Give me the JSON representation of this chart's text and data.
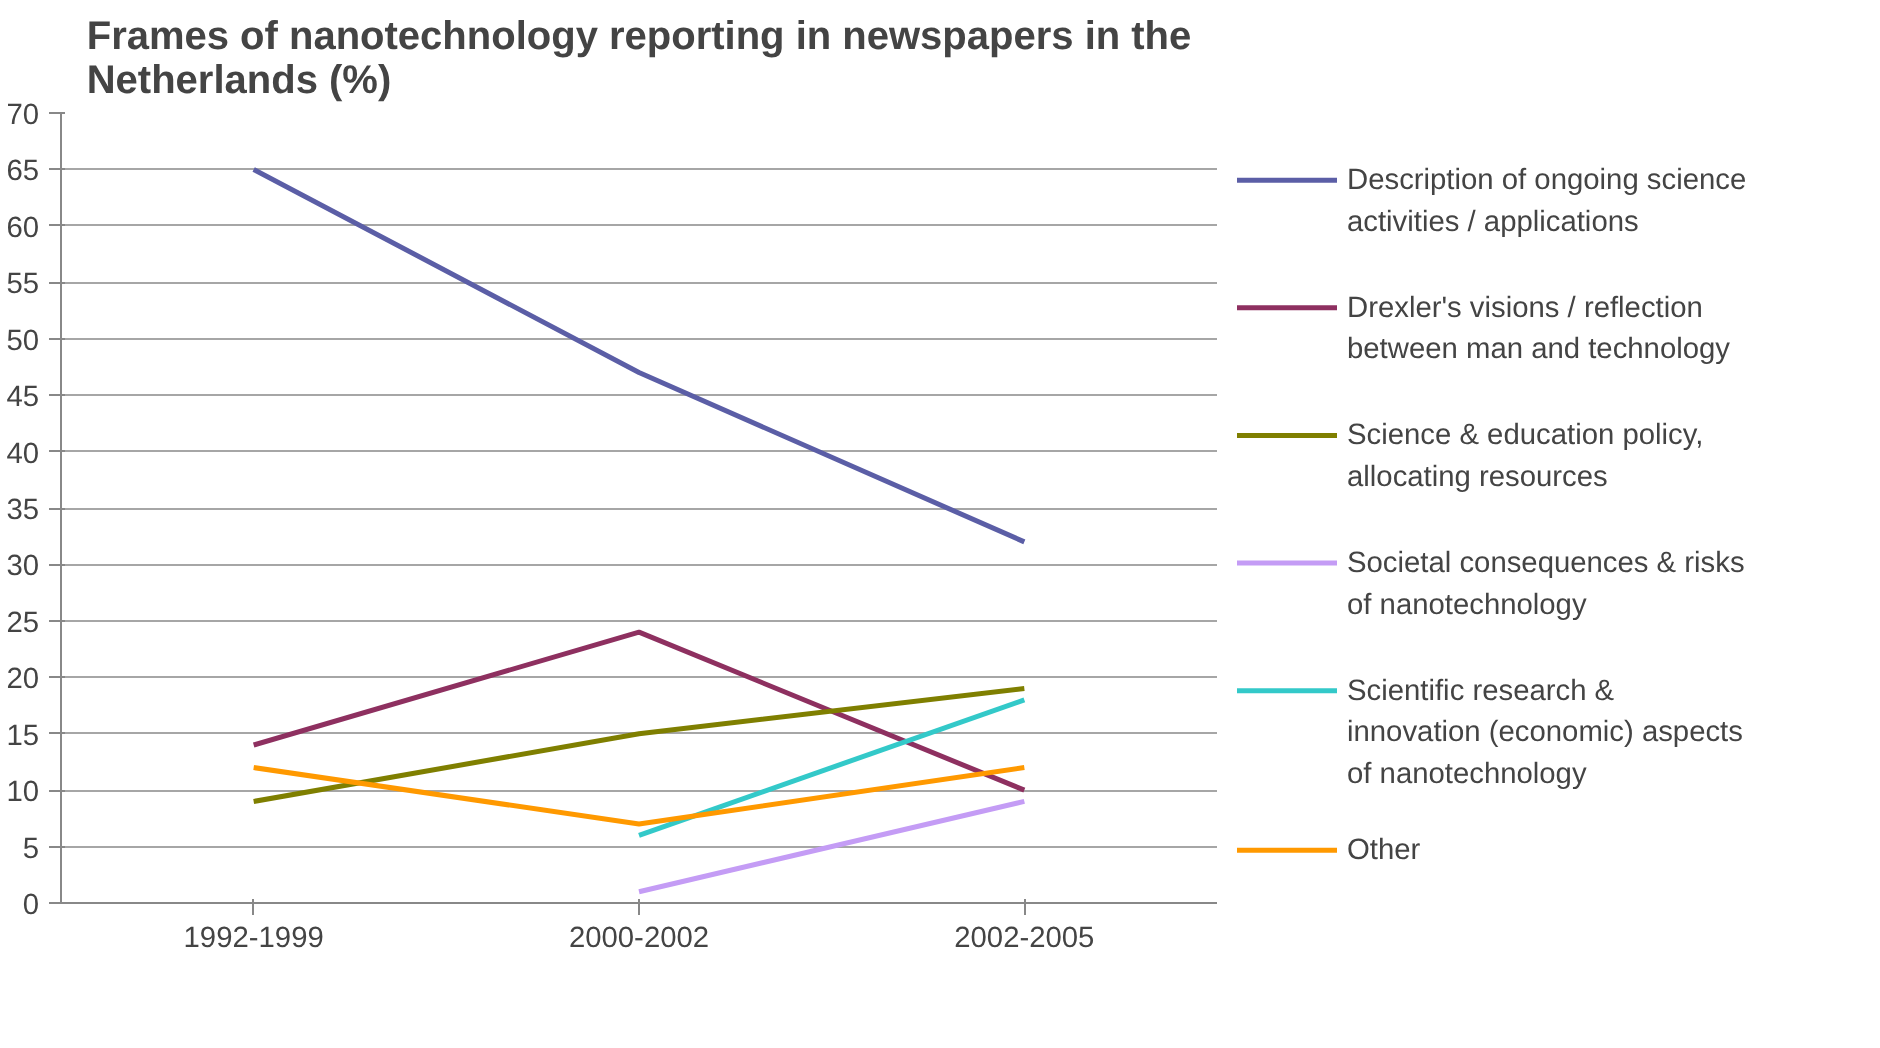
{
  "chart_data": {
    "type": "line",
    "title": "Frames of nanotechnology reporting in newspapers in the Netherlands (%)",
    "categories": [
      "1992-1999",
      "2000-2002",
      "2002-2005"
    ],
    "series": [
      {
        "name": "Description of ongoing science activities / applications",
        "color": "#5b5ea6",
        "values": [
          65,
          47,
          32
        ]
      },
      {
        "name": "Drexler's visions / reflection between man and technology",
        "color": "#8e3060",
        "values": [
          14,
          24,
          10
        ]
      },
      {
        "name": "Science & education policy, allocating resources",
        "color": "#7f7f00",
        "values": [
          9,
          15,
          19
        ]
      },
      {
        "name": "Societal consequences & risks of nanotechnology",
        "color": "#c49cf5",
        "values": [
          null,
          1,
          9
        ]
      },
      {
        "name": "Scientific research & innovation (economic) aspects of nanotechnology",
        "color": "#33c9c9",
        "values": [
          null,
          6,
          18
        ]
      },
      {
        "name": "Other",
        "color": "#ff9900",
        "values": [
          12,
          7,
          12
        ]
      }
    ],
    "ylim": [
      0,
      70
    ],
    "yticks": [
      0,
      5,
      10,
      15,
      20,
      25,
      30,
      35,
      40,
      45,
      50,
      55,
      60,
      65,
      70
    ],
    "grid": "y",
    "legend": "right",
    "marker": "none",
    "line_style": "solid"
  }
}
